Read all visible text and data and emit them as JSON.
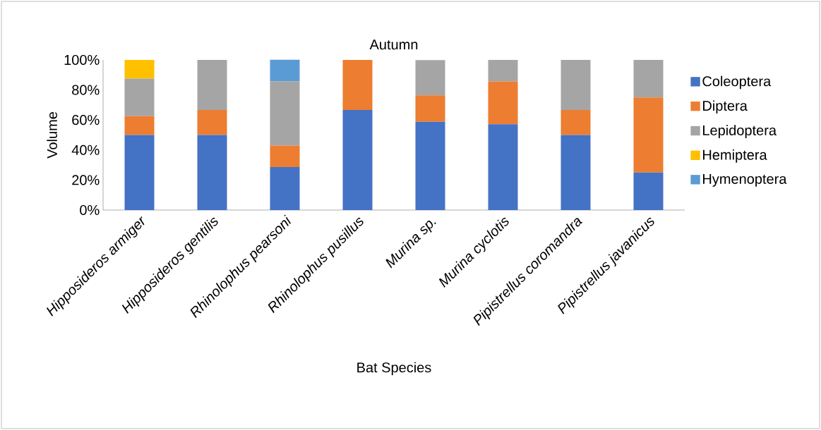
{
  "chart_data": {
    "type": "bar",
    "stacked": true,
    "title": "Autumn",
    "xlabel": "Bat Species",
    "ylabel": "Volume",
    "categories": [
      "Hipposideros armiger",
      "Hipposideros gentilis",
      "Rhinolophus pearsoni",
      "Rhinolophus pusillus",
      "Murina sp.",
      "Murina cyclotis",
      "Pipistrellus coromandra",
      "Pipistrellus javanicus"
    ],
    "series": [
      {
        "name": "Coleoptera",
        "color": "#4472c4",
        "values": [
          50,
          50,
          28.6,
          66.7,
          58.8,
          57.1,
          50,
          25
        ]
      },
      {
        "name": "Diptera",
        "color": "#ed7d31",
        "values": [
          12.5,
          16.7,
          14.3,
          33.3,
          17.6,
          28.6,
          16.7,
          50
        ]
      },
      {
        "name": "Lepidoptera",
        "color": "#a5a5a5",
        "values": [
          25,
          33.3,
          42.9,
          0,
          23.5,
          14.3,
          33.3,
          25
        ]
      },
      {
        "name": "Hemiptera",
        "color": "#ffc000",
        "values": [
          12.5,
          0,
          0,
          0,
          0,
          0,
          0,
          0
        ]
      },
      {
        "name": "Hymenoptera",
        "color": "#5b9bd5",
        "values": [
          0,
          0,
          14.3,
          0,
          0,
          0,
          0,
          0
        ]
      }
    ],
    "ylim": [
      0,
      100
    ],
    "yticks": [
      {
        "value": 0,
        "label": "0%"
      },
      {
        "value": 20,
        "label": "20%"
      },
      {
        "value": 40,
        "label": "40%"
      },
      {
        "value": 60,
        "label": "60%"
      },
      {
        "value": 80,
        "label": "80%"
      },
      {
        "value": 100,
        "label": "100%"
      }
    ],
    "legend": "right"
  }
}
